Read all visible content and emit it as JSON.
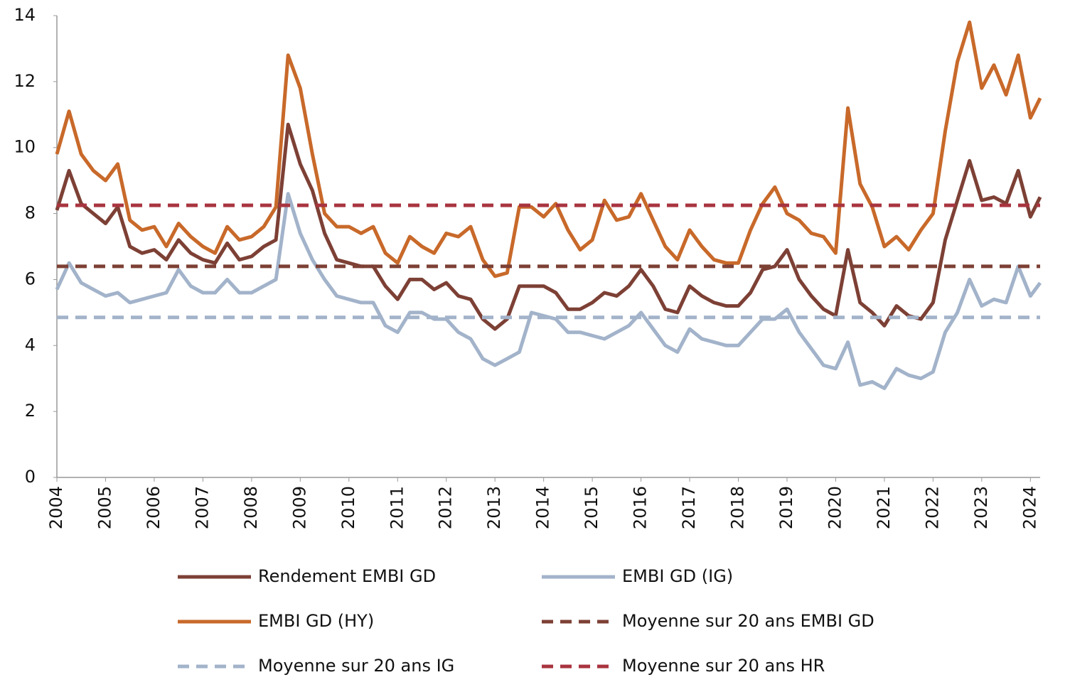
{
  "chart_data": {
    "type": "line",
    "x": [
      2004,
      2004.25,
      2004.5,
      2004.75,
      2005,
      2005.25,
      2005.5,
      2005.75,
      2006,
      2006.25,
      2006.5,
      2006.75,
      2007,
      2007.25,
      2007.5,
      2007.75,
      2008,
      2008.25,
      2008.5,
      2008.75,
      2009,
      2009.25,
      2009.5,
      2009.75,
      2010,
      2010.25,
      2010.5,
      2010.75,
      2011,
      2011.25,
      2011.5,
      2011.75,
      2012,
      2012.25,
      2012.5,
      2012.75,
      2013,
      2013.25,
      2013.5,
      2013.75,
      2014,
      2014.25,
      2014.5,
      2014.75,
      2015,
      2015.25,
      2015.5,
      2015.75,
      2016,
      2016.25,
      2016.5,
      2016.75,
      2017,
      2017.25,
      2017.5,
      2017.75,
      2018,
      2018.25,
      2018.5,
      2018.75,
      2019,
      2019.25,
      2019.5,
      2019.75,
      2020,
      2020.25,
      2020.5,
      2020.75,
      2021,
      2021.25,
      2021.5,
      2021.75,
      2022,
      2022.25,
      2022.5,
      2022.75,
      2023,
      2023.25,
      2023.5,
      2023.75,
      2024,
      2024.2
    ],
    "series": [
      {
        "name": "Rendement EMBI GD",
        "color": "#7d4035",
        "values": [
          8.1,
          9.3,
          8.3,
          8.0,
          7.7,
          8.2,
          7.0,
          6.8,
          6.9,
          6.6,
          7.2,
          6.8,
          6.6,
          6.5,
          7.1,
          6.6,
          6.7,
          7.0,
          7.2,
          10.7,
          9.5,
          8.7,
          7.4,
          6.6,
          6.5,
          6.4,
          6.4,
          5.8,
          5.4,
          6.0,
          6.0,
          5.7,
          5.9,
          5.5,
          5.4,
          4.8,
          4.5,
          4.8,
          5.8,
          5.8,
          5.8,
          5.6,
          5.1,
          5.1,
          5.3,
          5.6,
          5.5,
          5.8,
          6.3,
          5.8,
          5.1,
          5.0,
          5.8,
          5.5,
          5.3,
          5.2,
          5.2,
          5.6,
          6.3,
          6.4,
          6.9,
          6.0,
          5.5,
          5.1,
          4.9,
          6.9,
          5.3,
          5.0,
          4.6,
          5.2,
          4.9,
          4.8,
          5.3,
          7.2,
          8.4,
          9.6,
          8.4,
          8.5,
          8.3,
          9.3,
          7.9,
          8.5
        ]
      },
      {
        "name": "EMBI GD (IG)",
        "color": "#a2b3ca",
        "values": [
          5.7,
          6.5,
          5.9,
          5.7,
          5.5,
          5.6,
          5.3,
          5.4,
          5.5,
          5.6,
          6.3,
          5.8,
          5.6,
          5.6,
          6.0,
          5.6,
          5.6,
          5.8,
          6.0,
          8.6,
          7.4,
          6.6,
          6.0,
          5.5,
          5.4,
          5.3,
          5.3,
          4.6,
          4.4,
          5.0,
          5.0,
          4.8,
          4.8,
          4.4,
          4.2,
          3.6,
          3.4,
          3.6,
          3.8,
          5.0,
          4.9,
          4.8,
          4.4,
          4.4,
          4.3,
          4.2,
          4.4,
          4.6,
          5.0,
          4.5,
          4.0,
          3.8,
          4.5,
          4.2,
          4.1,
          4.0,
          4.0,
          4.4,
          4.8,
          4.8,
          5.1,
          4.4,
          3.9,
          3.4,
          3.3,
          4.1,
          2.8,
          2.9,
          2.7,
          3.3,
          3.1,
          3.0,
          3.2,
          4.4,
          5.0,
          6.0,
          5.2,
          5.4,
          5.3,
          6.4,
          5.5,
          5.9
        ]
      },
      {
        "name": "EMBI GD (HY)",
        "color": "#c8692a",
        "values": [
          9.8,
          11.1,
          9.8,
          9.3,
          9.0,
          9.5,
          7.8,
          7.5,
          7.6,
          7.0,
          7.7,
          7.3,
          7.0,
          6.8,
          7.6,
          7.2,
          7.3,
          7.6,
          8.2,
          12.8,
          11.8,
          9.8,
          8.0,
          7.6,
          7.6,
          7.4,
          7.6,
          6.8,
          6.5,
          7.3,
          7.0,
          6.8,
          7.4,
          7.3,
          7.6,
          6.6,
          6.1,
          6.2,
          8.2,
          8.2,
          7.9,
          8.3,
          7.5,
          6.9,
          7.2,
          8.4,
          7.8,
          7.9,
          8.6,
          7.8,
          7.0,
          6.6,
          7.5,
          7.0,
          6.6,
          6.5,
          6.5,
          7.5,
          8.3,
          8.8,
          8.0,
          7.8,
          7.4,
          7.3,
          6.8,
          11.2,
          8.9,
          8.2,
          7.0,
          7.3,
          6.9,
          7.5,
          8.0,
          10.5,
          12.6,
          13.8,
          11.8,
          12.5,
          11.6,
          12.8,
          10.9,
          11.5
        ]
      },
      {
        "name": "Moyenne sur 20 ans EMBI GD",
        "color": "#7d4035",
        "dash": true,
        "x": [
          2004,
          2024.2
        ],
        "values": [
          6.4,
          6.4
        ]
      },
      {
        "name": "Moyenne sur 20 ans IG",
        "color": "#a2b3ca",
        "dash": true,
        "x": [
          2004,
          2024.2
        ],
        "values": [
          4.85,
          4.85
        ]
      },
      {
        "name": "Moyenne sur 20 ans HR",
        "color": "#a8343f",
        "dash": true,
        "x": [
          2004,
          2024.2
        ],
        "values": [
          8.25,
          8.25
        ]
      }
    ],
    "xlim": [
      2004,
      2024.2
    ],
    "xticks": [
      2004,
      2005,
      2006,
      2007,
      2008,
      2009,
      2010,
      2011,
      2012,
      2013,
      2014,
      2015,
      2016,
      2017,
      2018,
      2019,
      2020,
      2021,
      2022,
      2023,
      2024
    ],
    "ylim": [
      0,
      14
    ],
    "yticks": [
      0,
      2,
      4,
      6,
      8,
      10,
      12,
      14
    ]
  }
}
